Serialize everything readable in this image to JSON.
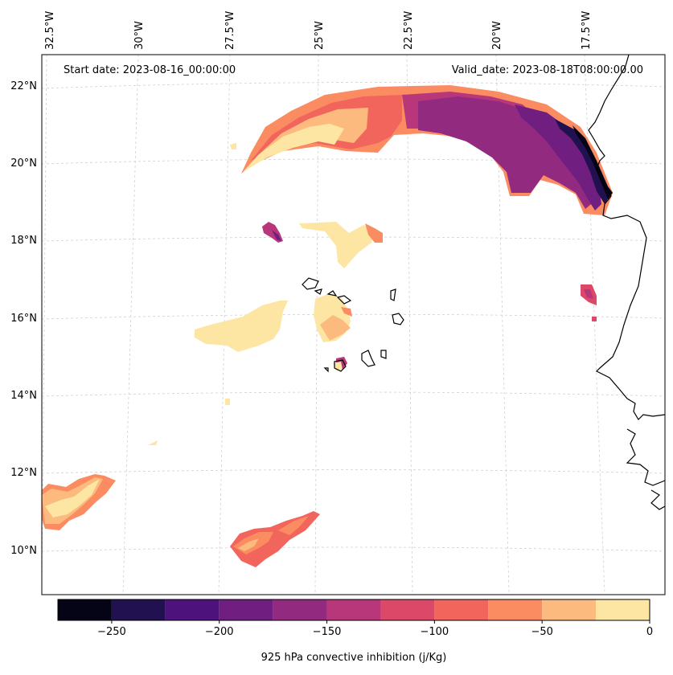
{
  "map": {
    "start_date_label": "Start date: 2023-08-16_00:00:00",
    "valid_date_label": "Valid_date: 2023-08-18T08:00:00.00",
    "lon_ticks": [
      "32.5°W",
      "30°W",
      "27.5°W",
      "25°W",
      "22.5°W",
      "20°W",
      "17.5°W"
    ],
    "lat_ticks": [
      "22°N",
      "20°N",
      "18°N",
      "16°N",
      "14°N",
      "12°N",
      "10°N"
    ]
  },
  "colorbar": {
    "label": "925 hPa convective inhibition (j/Kg)",
    "tick_labels": [
      "−250",
      "−200",
      "−150",
      "−100",
      "−50",
      "0"
    ],
    "colors": [
      "#050416",
      "#221150",
      "#4d127b",
      "#701f81",
      "#922b80",
      "#b8377a",
      "#dc4868",
      "#f2655c",
      "#fb8c62",
      "#fdba7f",
      "#fde6a3"
    ],
    "levels": [
      -275,
      -250,
      -225,
      -200,
      -175,
      -150,
      -125,
      -100,
      -75,
      -50,
      -25,
      0
    ]
  },
  "regions": [
    {
      "name": "northern-cin-arc",
      "min_value": -275
    },
    {
      "name": "cape-verde-cin-patch",
      "min_value": -150
    },
    {
      "name": "central-cin-patch",
      "min_value": -25
    },
    {
      "name": "southwest-cin-patch",
      "min_value": -100
    },
    {
      "name": "southern-cin-patch",
      "min_value": -125
    }
  ]
}
